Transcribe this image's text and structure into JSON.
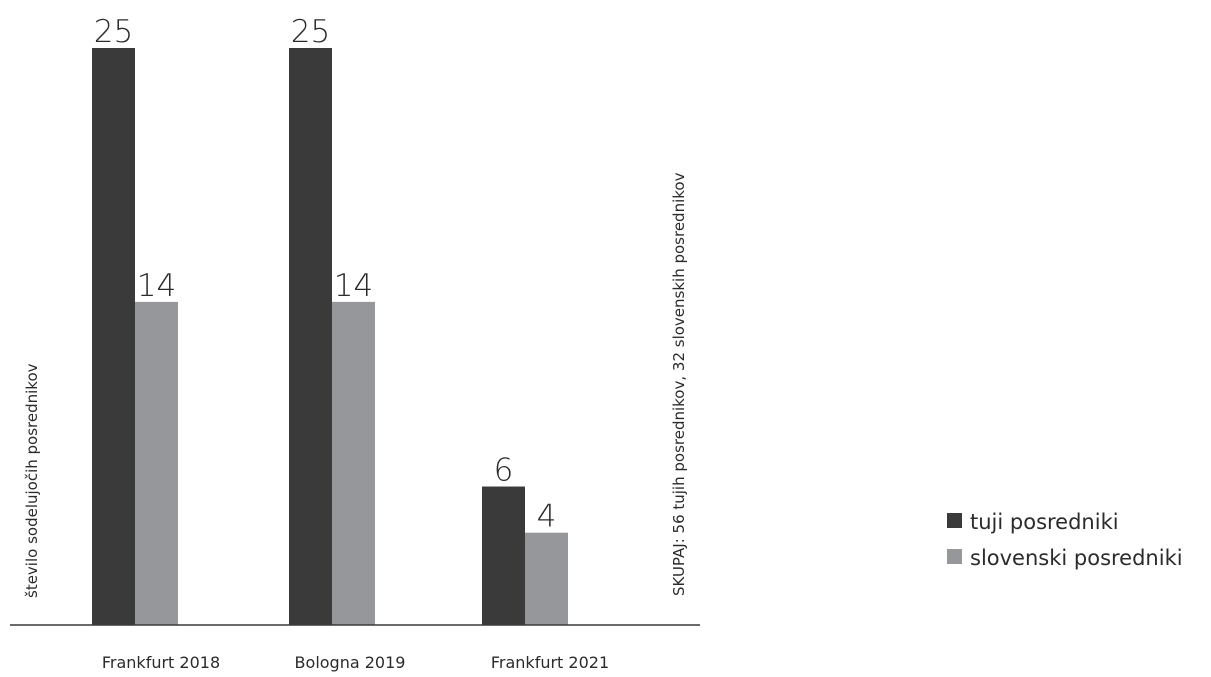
{
  "chart_data": {
    "type": "bar",
    "categories": [
      "Frankfurt 2018",
      "Bologna 2019",
      "Frankfurt 2021"
    ],
    "series": [
      {
        "name": "tuji posredniki",
        "values": [
          25,
          25,
          6
        ],
        "color": "#3a3a3a"
      },
      {
        "name": "slovenski posredniki",
        "values": [
          14,
          14,
          4
        ],
        "color": "#96979b"
      }
    ],
    "ylabel": "število sodelujočih posrednikov",
    "annotation": "SKUPAJ: 56 tujih posrednikov, 32 slovenskih posrednikov",
    "ylim": [
      0,
      25
    ],
    "grid": false,
    "legend_position": "right",
    "data_labels": true
  }
}
